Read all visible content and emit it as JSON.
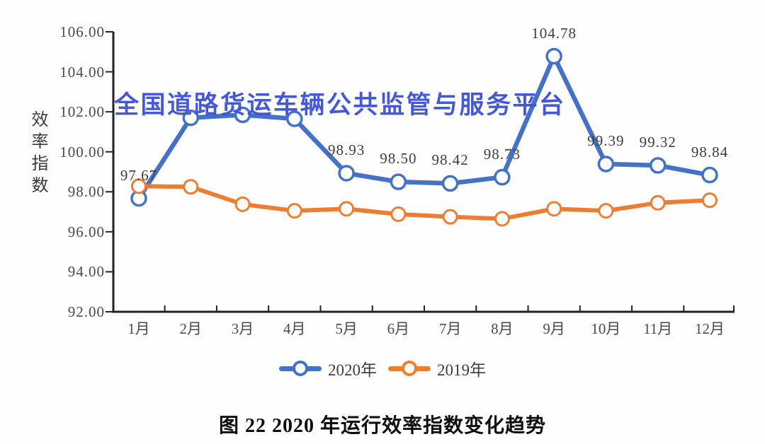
{
  "watermark": {
    "text": "全国道路货运车辆公共监管与服务平台",
    "color": "#3b50d8"
  },
  "caption": "图 22  2020 年运行效率指数变化趋势",
  "chart_data": {
    "type": "line",
    "title": "",
    "xlabel": "",
    "ylabel": "效率指数",
    "grid": false,
    "legend_position": "bottom",
    "ylim": [
      92,
      106
    ],
    "ytick_step": 2,
    "ytick_labels": [
      "106.00",
      "104.00",
      "102.00",
      "100.00",
      "98.00",
      "96.00",
      "94.00",
      "92.00"
    ],
    "categories": [
      "1月",
      "2月",
      "3月",
      "4月",
      "5月",
      "6月",
      "7月",
      "8月",
      "9月",
      "10月",
      "11月",
      "12月"
    ],
    "series": [
      {
        "name": "2020年",
        "color": "#4472c4",
        "values": [
          97.67,
          101.7,
          101.85,
          101.65,
          98.93,
          98.5,
          98.42,
          98.73,
          104.78,
          99.39,
          99.32,
          98.84
        ],
        "point_labels": [
          "97.67",
          null,
          null,
          null,
          "98.93",
          "98.50",
          "98.42",
          "98.73",
          "104.78",
          "99.39",
          "99.32",
          "98.84"
        ]
      },
      {
        "name": "2019年",
        "color": "#ed7d31",
        "values": [
          98.28,
          98.25,
          97.38,
          97.05,
          97.15,
          96.88,
          96.75,
          96.65,
          97.15,
          97.05,
          97.45,
          97.58
        ],
        "point_labels": [
          null,
          null,
          null,
          null,
          null,
          null,
          null,
          null,
          null,
          null,
          null,
          null
        ]
      }
    ]
  }
}
